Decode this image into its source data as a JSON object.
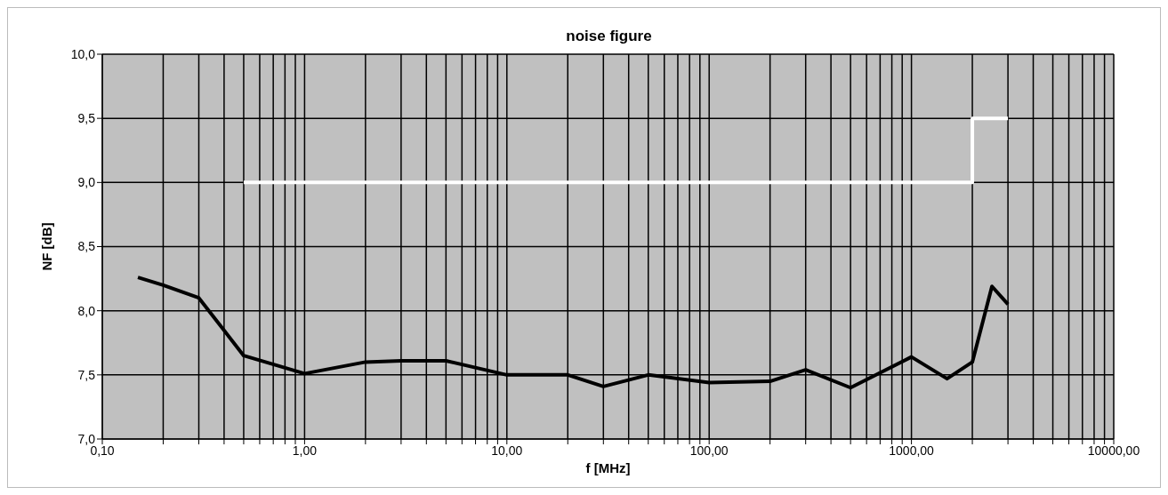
{
  "chart_data": {
    "type": "line",
    "title": "noise figure",
    "xlabel": "f [MHz]",
    "ylabel": "NF [dB]",
    "log": "x",
    "xlim": [
      0.1,
      10000
    ],
    "xticks": [
      {
        "value": 0.1,
        "label": "0,10"
      },
      {
        "value": 0.2,
        "label": null
      },
      {
        "value": 0.3,
        "label": null
      },
      {
        "value": 0.4,
        "label": null
      },
      {
        "value": 0.5,
        "label": null
      },
      {
        "value": 0.6,
        "label": null
      },
      {
        "value": 0.7,
        "label": null
      },
      {
        "value": 0.8,
        "label": null
      },
      {
        "value": 0.9,
        "label": null
      },
      {
        "value": 1,
        "label": "1,00"
      },
      {
        "value": 2,
        "label": null
      },
      {
        "value": 3,
        "label": null
      },
      {
        "value": 4,
        "label": null
      },
      {
        "value": 5,
        "label": null
      },
      {
        "value": 6,
        "label": null
      },
      {
        "value": 7,
        "label": null
      },
      {
        "value": 8,
        "label": null
      },
      {
        "value": 9,
        "label": null
      },
      {
        "value": 10,
        "label": "10,00"
      },
      {
        "value": 20,
        "label": null
      },
      {
        "value": 30,
        "label": null
      },
      {
        "value": 40,
        "label": null
      },
      {
        "value": 50,
        "label": null
      },
      {
        "value": 60,
        "label": null
      },
      {
        "value": 70,
        "label": null
      },
      {
        "value": 80,
        "label": null
      },
      {
        "value": 90,
        "label": null
      },
      {
        "value": 100,
        "label": "100,00"
      },
      {
        "value": 200,
        "label": null
      },
      {
        "value": 300,
        "label": null
      },
      {
        "value": 400,
        "label": null
      },
      {
        "value": 500,
        "label": null
      },
      {
        "value": 600,
        "label": null
      },
      {
        "value": 700,
        "label": null
      },
      {
        "value": 800,
        "label": null
      },
      {
        "value": 900,
        "label": null
      },
      {
        "value": 1000,
        "label": "1000,00"
      },
      {
        "value": 2000,
        "label": null
      },
      {
        "value": 3000,
        "label": null
      },
      {
        "value": 4000,
        "label": null
      },
      {
        "value": 5000,
        "label": null
      },
      {
        "value": 6000,
        "label": null
      },
      {
        "value": 7000,
        "label": null
      },
      {
        "value": 8000,
        "label": null
      },
      {
        "value": 9000,
        "label": null
      },
      {
        "value": 10000,
        "label": "10000,00"
      }
    ],
    "ylim": [
      7,
      10
    ],
    "yticks": [
      {
        "value": 7,
        "label": "7,0"
      },
      {
        "value": 7.5,
        "label": "7,5"
      },
      {
        "value": 8,
        "label": "8,0"
      },
      {
        "value": 8.5,
        "label": "8,5"
      },
      {
        "value": 9,
        "label": "9,0"
      },
      {
        "value": 9.5,
        "label": "9,5"
      },
      {
        "value": 10,
        "label": "10,0"
      }
    ],
    "grid": true,
    "legend": false,
    "marker": "none",
    "line_style": "solid",
    "series": [
      {
        "type": "line",
        "color": "#000000",
        "x": [
          0.15,
          0.2,
          0.3,
          0.5,
          1,
          2,
          3,
          5,
          10,
          20,
          30,
          50,
          100,
          200,
          300,
          500,
          1000,
          1500,
          2000,
          2500,
          3000
        ],
        "values": [
          8.26,
          8.2,
          8.1,
          7.65,
          7.51,
          7.6,
          7.61,
          7.61,
          7.5,
          7.5,
          7.41,
          7.5,
          7.44,
          7.45,
          7.54,
          7.4,
          7.64,
          7.47,
          7.6,
          8.19,
          8.05
        ]
      },
      {
        "type": "step",
        "color": "#ffffff",
        "x": [
          0.5,
          2000,
          3000
        ],
        "values": [
          9,
          9.5,
          9.5
        ]
      }
    ]
  }
}
